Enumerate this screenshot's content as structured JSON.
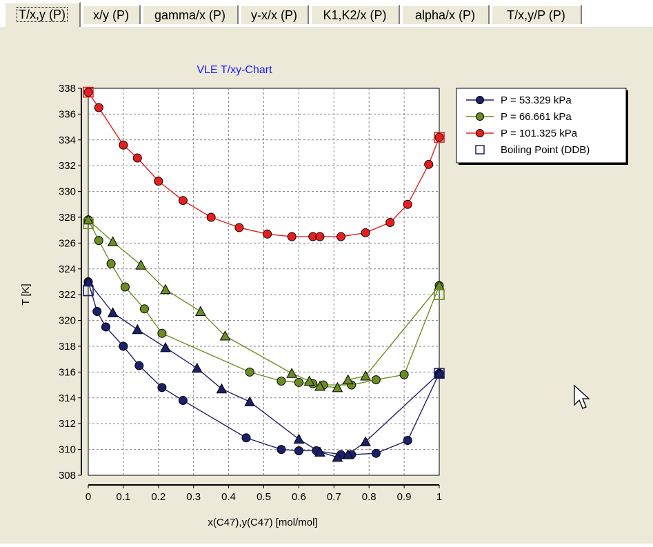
{
  "tabs": [
    {
      "label": "T/x,y (P)",
      "active": true
    },
    {
      "label": "x/y (P)",
      "active": false
    },
    {
      "label": "gamma/x (P)",
      "active": false
    },
    {
      "label": "y-x/x (P)",
      "active": false
    },
    {
      "label": "K1,K2/x (P)",
      "active": false
    },
    {
      "label": "alpha/x (P)",
      "active": false
    },
    {
      "label": "T/x,y/P (P)",
      "active": false
    }
  ],
  "colors": {
    "p53": "#1c1f6b",
    "p66": "#6b8e23",
    "p101": "#e81e1e",
    "ddb": "#1c1f6b",
    "title": "#1a1aff"
  },
  "chart_data": {
    "type": "line",
    "title": "VLE T/xy-Chart",
    "xlabel": "x(C47),y(C47) [mol/mol]",
    "ylabel": "T [K]",
    "xlim": [
      0,
      1
    ],
    "ylim": [
      308,
      338
    ],
    "xticks": [
      "0",
      "0.1",
      "0.2",
      "0.3",
      "0.4",
      "0.5",
      "0.6",
      "0.7",
      "0.8",
      "0.9",
      "1"
    ],
    "yticks": [
      "308",
      "310",
      "312",
      "314",
      "316",
      "318",
      "320",
      "322",
      "324",
      "326",
      "328",
      "330",
      "332",
      "334",
      "336",
      "338"
    ],
    "grid": true,
    "legend_position": "top-right",
    "series": [
      {
        "name": "P = 53.329 kPa",
        "key": "p53",
        "liquid": [
          [
            0,
            323.0
          ],
          [
            0.025,
            320.7
          ],
          [
            0.05,
            319.5
          ],
          [
            0.1,
            318.0
          ],
          [
            0.145,
            316.5
          ],
          [
            0.21,
            314.8
          ],
          [
            0.27,
            313.8
          ],
          [
            0.45,
            310.9
          ],
          [
            0.55,
            310.0
          ],
          [
            0.6,
            309.9
          ],
          [
            0.65,
            309.9
          ],
          [
            0.72,
            309.6
          ],
          [
            0.75,
            309.6
          ],
          [
            0.82,
            309.7
          ],
          [
            0.91,
            310.7
          ],
          [
            1,
            315.9
          ]
        ],
        "vapor": [
          [
            0,
            323.0
          ],
          [
            0.07,
            320.6
          ],
          [
            0.14,
            319.3
          ],
          [
            0.22,
            317.9
          ],
          [
            0.31,
            316.3
          ],
          [
            0.38,
            314.7
          ],
          [
            0.46,
            313.7
          ],
          [
            0.6,
            310.8
          ],
          [
            0.66,
            309.8
          ],
          [
            0.71,
            309.4
          ],
          [
            0.74,
            309.6
          ],
          [
            0.79,
            310.6
          ],
          [
            1,
            315.9
          ]
        ]
      },
      {
        "name": "P = 66.661 kPa",
        "key": "p66",
        "liquid": [
          [
            0,
            327.8
          ],
          [
            0.03,
            326.2
          ],
          [
            0.065,
            324.4
          ],
          [
            0.105,
            322.6
          ],
          [
            0.16,
            320.9
          ],
          [
            0.21,
            319.0
          ],
          [
            0.46,
            316.0
          ],
          [
            0.55,
            315.3
          ],
          [
            0.6,
            315.2
          ],
          [
            0.64,
            315.1
          ],
          [
            0.67,
            315.0
          ],
          [
            0.75,
            315.0
          ],
          [
            0.82,
            315.4
          ],
          [
            0.9,
            315.8
          ],
          [
            1,
            322.7
          ]
        ],
        "vapor": [
          [
            0,
            327.8
          ],
          [
            0.07,
            326.1
          ],
          [
            0.15,
            324.3
          ],
          [
            0.22,
            322.4
          ],
          [
            0.32,
            320.7
          ],
          [
            0.39,
            318.8
          ],
          [
            0.58,
            315.9
          ],
          [
            0.63,
            315.3
          ],
          [
            0.66,
            314.9
          ],
          [
            0.71,
            314.8
          ],
          [
            0.74,
            315.4
          ],
          [
            0.79,
            315.7
          ],
          [
            1,
            322.7
          ]
        ]
      },
      {
        "name": "P = 101.325 kPa",
        "key": "p101",
        "liquid": [
          [
            0,
            337.7
          ],
          [
            0.03,
            336.5
          ],
          [
            0.1,
            333.6
          ],
          [
            0.14,
            332.6
          ],
          [
            0.2,
            330.8
          ],
          [
            0.27,
            329.3
          ],
          [
            0.35,
            328.0
          ],
          [
            0.43,
            327.2
          ],
          [
            0.51,
            326.7
          ],
          [
            0.58,
            326.5
          ],
          [
            0.64,
            326.5
          ],
          [
            0.66,
            326.5
          ],
          [
            0.72,
            326.5
          ],
          [
            0.79,
            326.8
          ],
          [
            0.86,
            327.6
          ],
          [
            0.91,
            329.0
          ],
          [
            0.97,
            332.1
          ],
          [
            1,
            334.2
          ]
        ],
        "vapor": []
      }
    ],
    "boiling_point_ddb": {
      "name": "Boiling Point (DDB)",
      "points": [
        {
          "x": 0,
          "y": 322.3,
          "color": "p53"
        },
        {
          "x": 0,
          "y": 327.5,
          "color": "p66"
        },
        {
          "x": 0,
          "y": 337.7,
          "color": "p101"
        },
        {
          "x": 1,
          "y": 315.9,
          "color": "p53"
        },
        {
          "x": 1,
          "y": 322.0,
          "color": "p66"
        },
        {
          "x": 1,
          "y": 334.2,
          "color": "p101"
        }
      ]
    }
  }
}
